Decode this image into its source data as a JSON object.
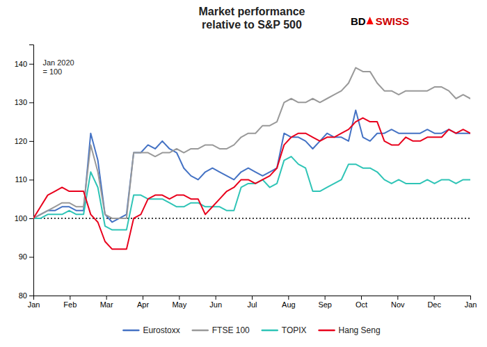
{
  "chart_data": {
    "type": "line",
    "title": "Market performance\nrelative to S&P 500",
    "annotations": [
      {
        "text": "Jan 2020\n= 100"
      }
    ],
    "logo": [
      {
        "text": "BD",
        "color": "#000000"
      },
      {
        "text": "SWISS",
        "color": "#CC0000"
      }
    ],
    "xlim": [
      0,
      12
    ],
    "xticks": [
      {
        "value": 0,
        "label": "Jan"
      },
      {
        "value": 1,
        "label": "Feb"
      },
      {
        "value": 2,
        "label": "Mar"
      },
      {
        "value": 3,
        "label": "Apr"
      },
      {
        "value": 4,
        "label": "May"
      },
      {
        "value": 5,
        "label": "Jun"
      },
      {
        "value": 6,
        "label": "Jul"
      },
      {
        "value": 7,
        "label": "Aug"
      },
      {
        "value": 8,
        "label": "Sep"
      },
      {
        "value": 9,
        "label": "Oct"
      },
      {
        "value": 10,
        "label": "Nov"
      },
      {
        "value": 11,
        "label": "Dec"
      },
      {
        "value": 12,
        "label": "Jan"
      }
    ],
    "ylim": [
      80,
      145
    ],
    "yticks": [
      80,
      90,
      100,
      110,
      120,
      130,
      140
    ],
    "reference_y": 100,
    "grid": false,
    "legend": "bottom",
    "series": [
      {
        "name": "Eurostoxx",
        "color": "#4472C4",
        "values": [
          100,
          101,
          102,
          102,
          103,
          103,
          102,
          102,
          122,
          115,
          101,
          99,
          100,
          101,
          117,
          117,
          119,
          118,
          120,
          118,
          117,
          113,
          111,
          110,
          112,
          113,
          112,
          111,
          110,
          112,
          113,
          112,
          111,
          112,
          113,
          122,
          121,
          121,
          120,
          118,
          120,
          122,
          121,
          121,
          120,
          128,
          121,
          120,
          122,
          122,
          123,
          122,
          122,
          122,
          122,
          123,
          122,
          122,
          123,
          122,
          122,
          122
        ]
      },
      {
        "name": "FTSE 100",
        "color": "#999999",
        "values": [
          100,
          101,
          102,
          103,
          104,
          104,
          103,
          103,
          119,
          112,
          101,
          100,
          100,
          100,
          117,
          117,
          117,
          116,
          117,
          117,
          118,
          117,
          118,
          118,
          119,
          119,
          118,
          118,
          119,
          121,
          122,
          122,
          124,
          124,
          125,
          130,
          131,
          130,
          130,
          131,
          130,
          131,
          132,
          133,
          135,
          139,
          138,
          138,
          135,
          133,
          133,
          132,
          133,
          133,
          133,
          133,
          134,
          134,
          133,
          131,
          132,
          131
        ]
      },
      {
        "name": "TOPIX",
        "color": "#2EC4B6",
        "values": [
          100,
          100,
          101,
          101,
          101,
          102,
          101,
          101,
          112,
          108,
          98,
          97,
          97,
          97,
          106,
          106,
          105,
          105,
          105,
          104,
          103,
          103,
          104,
          104,
          103,
          103,
          103,
          102,
          102,
          108,
          109,
          109,
          110,
          108,
          109,
          115,
          116,
          114,
          113,
          107,
          107,
          108,
          109,
          110,
          114,
          114,
          113,
          113,
          112,
          110,
          109,
          110,
          109,
          109,
          109,
          110,
          109,
          110,
          110,
          109,
          110,
          110
        ]
      },
      {
        "name": "Hang Seng",
        "color": "#E8001C",
        "values": [
          100,
          103,
          106,
          107,
          108,
          107,
          107,
          107,
          101,
          99,
          94,
          92,
          92,
          92,
          100,
          101,
          105,
          106,
          106,
          105,
          106,
          106,
          105,
          105,
          101,
          103,
          105,
          107,
          108,
          110,
          110,
          109,
          110,
          111,
          113,
          119,
          121,
          122,
          122,
          121,
          120,
          121,
          121,
          122,
          123,
          125,
          126,
          125,
          125,
          120,
          119,
          119,
          121,
          120,
          120,
          121,
          121,
          121,
          123,
          122,
          123,
          122
        ]
      }
    ]
  }
}
